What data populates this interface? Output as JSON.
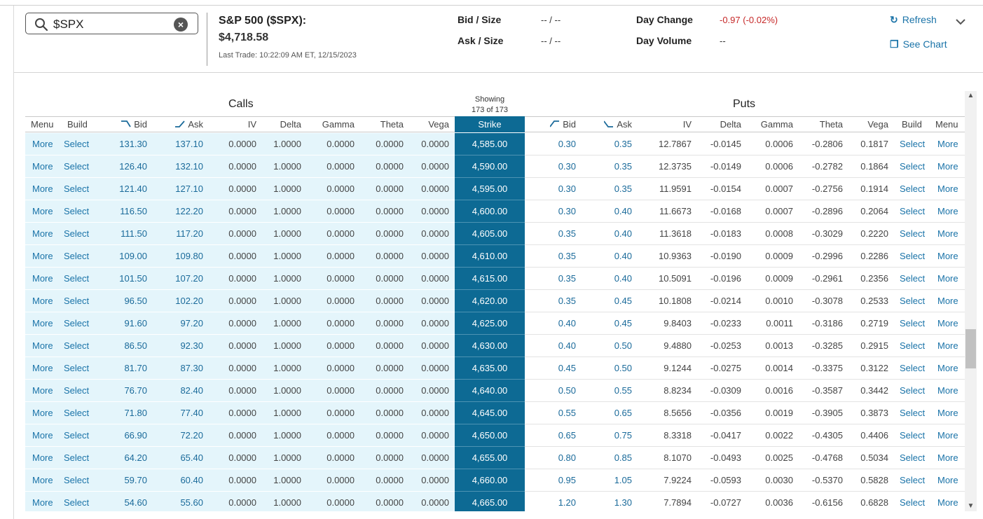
{
  "search": {
    "value": "$SPX"
  },
  "quote": {
    "name": "S&P 500 ($SPX):",
    "price": "$4,718.58",
    "last_trade": "Last Trade: 10:22:09 AM ET, 12/15/2023",
    "bid_size_label": "Bid / Size",
    "bid_size_value": "-- / --",
    "ask_size_label": "Ask / Size",
    "ask_size_value": "-- / --",
    "day_change_label": "Day Change",
    "day_change_value": "-0.97 (-0.02%)",
    "day_volume_label": "Day Volume",
    "day_volume_value": "--",
    "refresh_label": "Refresh",
    "see_chart_label": "See Chart"
  },
  "colors": {
    "strike": "#0d6a94",
    "call_row": "#e4f5fb",
    "link": "#1a73a8",
    "negative": "#c62828"
  },
  "chain": {
    "calls_label": "Calls",
    "puts_label": "Puts",
    "showing_line1": "Showing",
    "showing_line2": "173 of 173",
    "headers": {
      "menu": "Menu",
      "build": "Build",
      "bid": "Bid",
      "ask": "Ask",
      "iv": "IV",
      "delta": "Delta",
      "gamma": "Gamma",
      "theta": "Theta",
      "vega": "Vega",
      "strike": "Strike"
    },
    "more_label": "More",
    "select_label": "Select",
    "rows": [
      {
        "cb": "131.30",
        "ca": "137.10",
        "civ": "0.0000",
        "cd": "1.0000",
        "cg": "0.0000",
        "ct": "0.0000",
        "cv": "0.0000",
        "strike": "4,585.00",
        "pb": "0.30",
        "pa": "0.35",
        "piv": "12.7867",
        "pd": "-0.0145",
        "pg": "0.0006",
        "pt": "-0.2806",
        "pv": "0.1817"
      },
      {
        "cb": "126.40",
        "ca": "132.10",
        "civ": "0.0000",
        "cd": "1.0000",
        "cg": "0.0000",
        "ct": "0.0000",
        "cv": "0.0000",
        "strike": "4,590.00",
        "pb": "0.30",
        "pa": "0.35",
        "piv": "12.3735",
        "pd": "-0.0149",
        "pg": "0.0006",
        "pt": "-0.2782",
        "pv": "0.1864"
      },
      {
        "cb": "121.40",
        "ca": "127.10",
        "civ": "0.0000",
        "cd": "1.0000",
        "cg": "0.0000",
        "ct": "0.0000",
        "cv": "0.0000",
        "strike": "4,595.00",
        "pb": "0.30",
        "pa": "0.35",
        "piv": "11.9591",
        "pd": "-0.0154",
        "pg": "0.0007",
        "pt": "-0.2756",
        "pv": "0.1914"
      },
      {
        "cb": "116.50",
        "ca": "122.20",
        "civ": "0.0000",
        "cd": "1.0000",
        "cg": "0.0000",
        "ct": "0.0000",
        "cv": "0.0000",
        "strike": "4,600.00",
        "pb": "0.30",
        "pa": "0.40",
        "piv": "11.6673",
        "pd": "-0.0168",
        "pg": "0.0007",
        "pt": "-0.2896",
        "pv": "0.2064"
      },
      {
        "cb": "111.50",
        "ca": "117.20",
        "civ": "0.0000",
        "cd": "1.0000",
        "cg": "0.0000",
        "ct": "0.0000",
        "cv": "0.0000",
        "strike": "4,605.00",
        "pb": "0.35",
        "pa": "0.40",
        "piv": "11.3618",
        "pd": "-0.0183",
        "pg": "0.0008",
        "pt": "-0.3029",
        "pv": "0.2220"
      },
      {
        "cb": "109.00",
        "ca": "109.80",
        "civ": "0.0000",
        "cd": "1.0000",
        "cg": "0.0000",
        "ct": "0.0000",
        "cv": "0.0000",
        "strike": "4,610.00",
        "pb": "0.35",
        "pa": "0.40",
        "piv": "10.9363",
        "pd": "-0.0190",
        "pg": "0.0009",
        "pt": "-0.2996",
        "pv": "0.2286"
      },
      {
        "cb": "101.50",
        "ca": "107.20",
        "civ": "0.0000",
        "cd": "1.0000",
        "cg": "0.0000",
        "ct": "0.0000",
        "cv": "0.0000",
        "strike": "4,615.00",
        "pb": "0.35",
        "pa": "0.40",
        "piv": "10.5091",
        "pd": "-0.0196",
        "pg": "0.0009",
        "pt": "-0.2961",
        "pv": "0.2356"
      },
      {
        "cb": "96.50",
        "ca": "102.20",
        "civ": "0.0000",
        "cd": "1.0000",
        "cg": "0.0000",
        "ct": "0.0000",
        "cv": "0.0000",
        "strike": "4,620.00",
        "pb": "0.35",
        "pa": "0.45",
        "piv": "10.1808",
        "pd": "-0.0214",
        "pg": "0.0010",
        "pt": "-0.3078",
        "pv": "0.2533"
      },
      {
        "cb": "91.60",
        "ca": "97.20",
        "civ": "0.0000",
        "cd": "1.0000",
        "cg": "0.0000",
        "ct": "0.0000",
        "cv": "0.0000",
        "strike": "4,625.00",
        "pb": "0.40",
        "pa": "0.45",
        "piv": "9.8403",
        "pd": "-0.0233",
        "pg": "0.0011",
        "pt": "-0.3186",
        "pv": "0.2719"
      },
      {
        "cb": "86.50",
        "ca": "92.30",
        "civ": "0.0000",
        "cd": "1.0000",
        "cg": "0.0000",
        "ct": "0.0000",
        "cv": "0.0000",
        "strike": "4,630.00",
        "pb": "0.40",
        "pa": "0.50",
        "piv": "9.4880",
        "pd": "-0.0253",
        "pg": "0.0013",
        "pt": "-0.3285",
        "pv": "0.2915"
      },
      {
        "cb": "81.70",
        "ca": "87.30",
        "civ": "0.0000",
        "cd": "1.0000",
        "cg": "0.0000",
        "ct": "0.0000",
        "cv": "0.0000",
        "strike": "4,635.00",
        "pb": "0.45",
        "pa": "0.50",
        "piv": "9.1244",
        "pd": "-0.0275",
        "pg": "0.0014",
        "pt": "-0.3375",
        "pv": "0.3122"
      },
      {
        "cb": "76.70",
        "ca": "82.40",
        "civ": "0.0000",
        "cd": "1.0000",
        "cg": "0.0000",
        "ct": "0.0000",
        "cv": "0.0000",
        "strike": "4,640.00",
        "pb": "0.50",
        "pa": "0.55",
        "piv": "8.8234",
        "pd": "-0.0309",
        "pg": "0.0016",
        "pt": "-0.3587",
        "pv": "0.3442"
      },
      {
        "cb": "71.80",
        "ca": "77.40",
        "civ": "0.0000",
        "cd": "1.0000",
        "cg": "0.0000",
        "ct": "0.0000",
        "cv": "0.0000",
        "strike": "4,645.00",
        "pb": "0.55",
        "pa": "0.65",
        "piv": "8.5656",
        "pd": "-0.0356",
        "pg": "0.0019",
        "pt": "-0.3905",
        "pv": "0.3873"
      },
      {
        "cb": "66.90",
        "ca": "72.20",
        "civ": "0.0000",
        "cd": "1.0000",
        "cg": "0.0000",
        "ct": "0.0000",
        "cv": "0.0000",
        "strike": "4,650.00",
        "pb": "0.65",
        "pa": "0.75",
        "piv": "8.3318",
        "pd": "-0.0417",
        "pg": "0.0022",
        "pt": "-0.4305",
        "pv": "0.4406"
      },
      {
        "cb": "64.20",
        "ca": "65.40",
        "civ": "0.0000",
        "cd": "1.0000",
        "cg": "0.0000",
        "ct": "0.0000",
        "cv": "0.0000",
        "strike": "4,655.00",
        "pb": "0.80",
        "pa": "0.85",
        "piv": "8.1070",
        "pd": "-0.0493",
        "pg": "0.0025",
        "pt": "-0.4768",
        "pv": "0.5034"
      },
      {
        "cb": "59.70",
        "ca": "60.40",
        "civ": "0.0000",
        "cd": "1.0000",
        "cg": "0.0000",
        "ct": "0.0000",
        "cv": "0.0000",
        "strike": "4,660.00",
        "pb": "0.95",
        "pa": "1.05",
        "piv": "7.9224",
        "pd": "-0.0593",
        "pg": "0.0030",
        "pt": "-0.5370",
        "pv": "0.5828"
      },
      {
        "cb": "54.60",
        "ca": "55.60",
        "civ": "0.0000",
        "cd": "1.0000",
        "cg": "0.0000",
        "ct": "0.0000",
        "cv": "0.0000",
        "strike": "4,665.00",
        "pb": "1.20",
        "pa": "1.30",
        "piv": "7.7894",
        "pd": "-0.0727",
        "pg": "0.0036",
        "pt": "-0.6156",
        "pv": "0.6828"
      }
    ]
  }
}
